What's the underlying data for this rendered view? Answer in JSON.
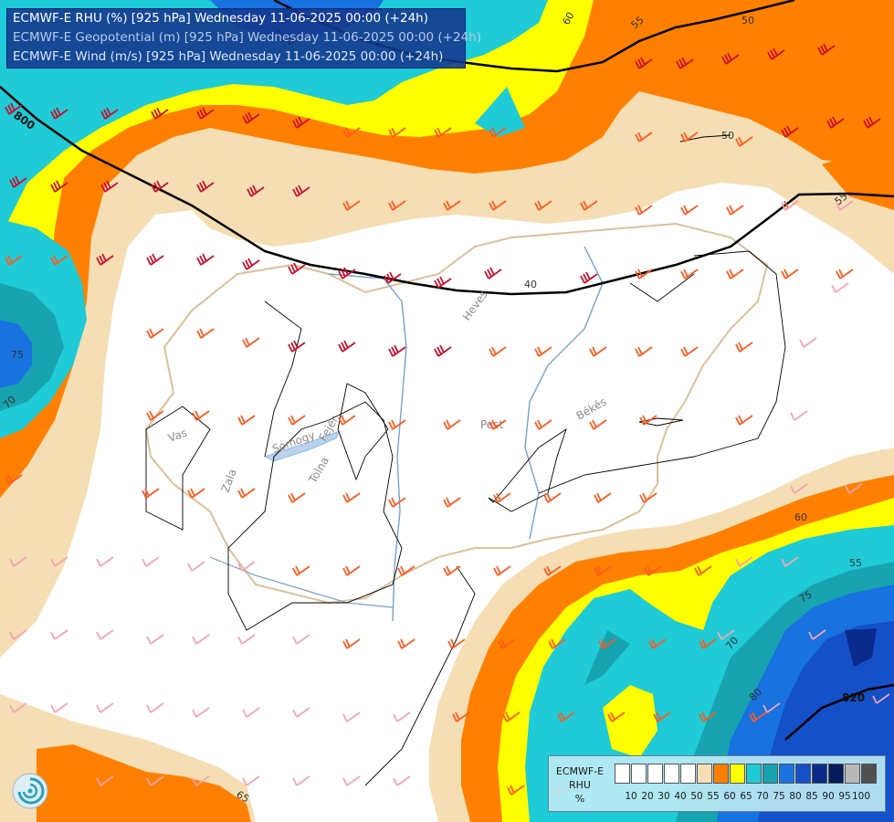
{
  "titles": {
    "line1": "ECMWF-E RHU (%) [925 hPa] Wednesday 11-06-2025 00:00 (+24h)",
    "line2": "ECMWF-E Geopotential (m) [925 hPa] Wednesday 11-06-2025 00:00 (+24h)",
    "line3": "ECMWF-E Wind (m/s) [925 hPa] Wednesday 11-06-2025 00:00 (+24h)"
  },
  "legend": {
    "title1": "ECMWF-E",
    "title2": "RHU",
    "title3": "%",
    "swatch_colors": [
      "#ffffff",
      "#ffffff",
      "#ffffff",
      "#ffffff",
      "#ffffff",
      "#f5deb3",
      "#ff8000",
      "#ffff00",
      "#1ecbd6",
      "#18a3b0",
      "#1873e0",
      "#1450c8",
      "#0a2a8c",
      "#071a5a",
      "#b8b8b8",
      "#505050"
    ],
    "ticks": [
      "10",
      "20",
      "30",
      "40",
      "50",
      "55",
      "60",
      "65",
      "70",
      "75",
      "80",
      "85",
      "90",
      "95",
      "100"
    ]
  },
  "geopotential_labels": [
    "800",
    "780",
    "820",
    "40",
    "50",
    "55",
    "50",
    "55",
    "60"
  ],
  "rh_contour_labels": [
    "75",
    "70",
    "60",
    "55",
    "65",
    "75",
    "70",
    "80",
    "55",
    "60",
    "55"
  ],
  "place_labels": [
    "Vas",
    "Zala",
    "Somogy",
    "Tolna",
    "Fejér",
    "Heves",
    "Pest",
    "Békés"
  ],
  "logo": "ecmwf-logo"
}
